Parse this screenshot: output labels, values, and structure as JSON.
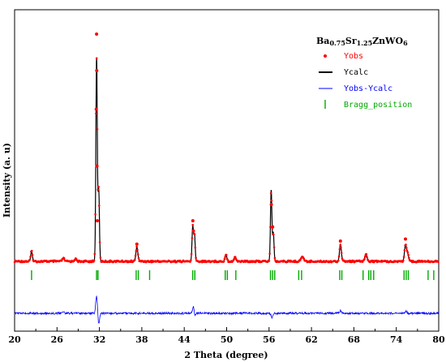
{
  "chart_data": {
    "type": "line",
    "xlabel": "2 Theta (degree)",
    "ylabel": "Intensity (a. u)",
    "xlim": [
      20,
      80
    ],
    "x_ticks": [
      "20",
      "26",
      "32",
      "38",
      "44",
      "50",
      "56",
      "62",
      "68",
      "74",
      "80"
    ],
    "legend": {
      "title_base": "Ba",
      "title_parts": [
        {
          "text": "Ba",
          "sub": false
        },
        {
          "text": "0.75",
          "sub": true
        },
        {
          "text": "Sr",
          "sub": false
        },
        {
          "text": "1.25",
          "sub": true
        },
        {
          "text": "ZnWO",
          "sub": false
        },
        {
          "text": "6",
          "sub": true
        }
      ],
      "placement": "top-right",
      "entries": [
        {
          "label": "Yobs",
          "color": "#ff0000",
          "marker": "dot"
        },
        {
          "label": "Ycalc",
          "color": "#000000",
          "marker": "line"
        },
        {
          "label": "Yobs-Ycalc",
          "color": "#0000ff",
          "marker": "line"
        },
        {
          "label": "Bragg_position",
          "color": "#00aa00",
          "marker": "tick"
        }
      ]
    },
    "peaks": [
      {
        "x": 22.4,
        "height": 0.05,
        "width": 0.12
      },
      {
        "x": 26.9,
        "height": 0.015,
        "width": 0.15
      },
      {
        "x": 28.6,
        "height": 0.012,
        "width": 0.15
      },
      {
        "x": 31.6,
        "height": 1.0,
        "width": 0.1
      },
      {
        "x": 31.9,
        "height": 0.35,
        "width": 0.1
      },
      {
        "x": 37.3,
        "height": 0.07,
        "width": 0.14
      },
      {
        "x": 45.2,
        "height": 0.17,
        "width": 0.1
      },
      {
        "x": 45.45,
        "height": 0.13,
        "width": 0.1
      },
      {
        "x": 49.9,
        "height": 0.035,
        "width": 0.13
      },
      {
        "x": 51.2,
        "height": 0.02,
        "width": 0.15
      },
      {
        "x": 56.3,
        "height": 0.35,
        "width": 0.1
      },
      {
        "x": 56.6,
        "height": 0.14,
        "width": 0.1
      },
      {
        "x": 60.7,
        "height": 0.025,
        "width": 0.18
      },
      {
        "x": 66.1,
        "height": 0.085,
        "width": 0.13
      },
      {
        "x": 69.7,
        "height": 0.035,
        "width": 0.16
      },
      {
        "x": 75.3,
        "height": 0.08,
        "width": 0.14
      },
      {
        "x": 75.6,
        "height": 0.035,
        "width": 0.14
      }
    ],
    "obs_markers": [
      {
        "x": 31.6,
        "y": 1.12
      },
      {
        "x": 31.62,
        "y": 0.94
      },
      {
        "x": 31.55,
        "y": 0.75
      },
      {
        "x": 31.66,
        "y": 0.47
      },
      {
        "x": 31.7,
        "y": 0.2
      },
      {
        "x": 45.22,
        "y": 0.2
      },
      {
        "x": 45.3,
        "y": 0.15
      },
      {
        "x": 56.32,
        "y": 0.28
      },
      {
        "x": 56.5,
        "y": 0.17
      },
      {
        "x": 37.3,
        "y": 0.085
      },
      {
        "x": 66.1,
        "y": 0.1
      },
      {
        "x": 75.3,
        "y": 0.11
      }
    ],
    "bragg_positions": [
      22.4,
      31.6,
      31.8,
      37.2,
      37.5,
      39.1,
      45.2,
      45.5,
      49.8,
      50.1,
      51.3,
      56.2,
      56.5,
      56.8,
      60.2,
      60.6,
      66.0,
      66.3,
      69.3,
      70.1,
      70.4,
      70.8,
      75.1,
      75.4,
      75.7,
      78.5,
      79.3
    ],
    "difference_features": [
      {
        "x": 26.9,
        "amp": 0.06
      },
      {
        "x": 28.6,
        "amp": 0.03
      },
      {
        "x": 31.6,
        "amp": 0.55
      },
      {
        "x": 31.9,
        "amp": -0.35
      },
      {
        "x": 45.3,
        "amp": 0.22
      },
      {
        "x": 45.5,
        "amp": -0.1
      },
      {
        "x": 56.4,
        "amp": -0.12
      },
      {
        "x": 66.1,
        "amp": 0.08
      },
      {
        "x": 75.4,
        "amp": 0.06
      }
    ]
  }
}
